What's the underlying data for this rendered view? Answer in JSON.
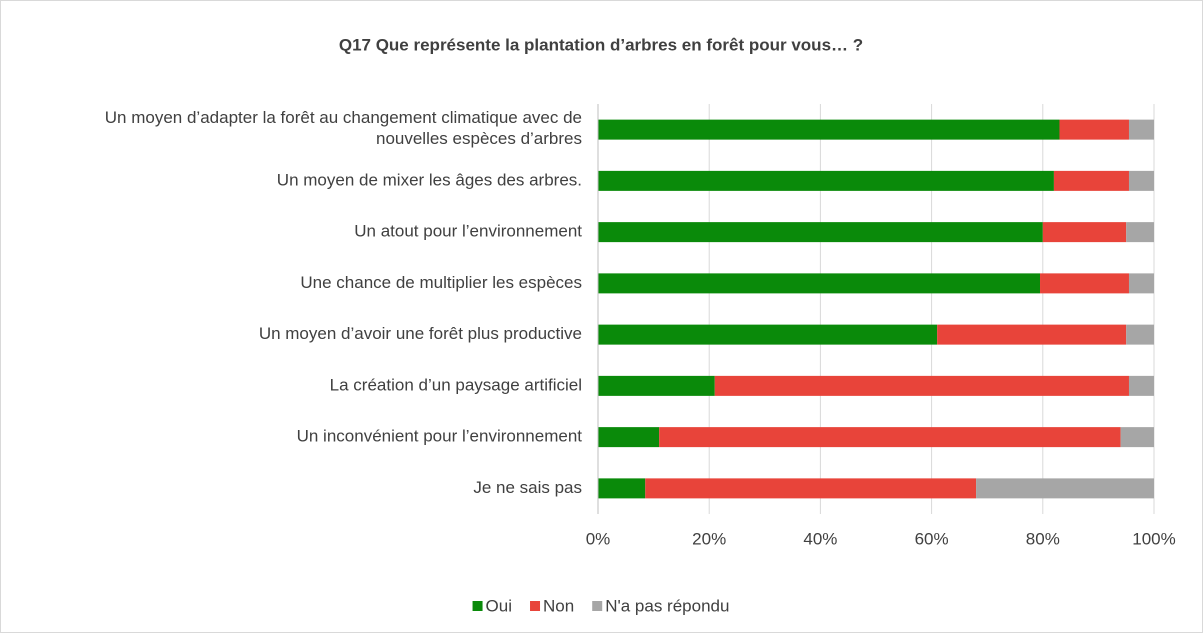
{
  "chart_data": {
    "type": "stacked-bar-horizontal",
    "title": "Q17  Que représente la plantation d’arbres en forêt pour vous… ?",
    "categories": [
      "Un moyen d’adapter la forêt au changement climatique avec de nouvelles espèces d’arbres",
      "Un moyen de mixer les âges des arbres.",
      "Un atout pour l’environnement",
      "Une chance de multiplier les espèces",
      "Un moyen d’avoir une forêt plus productive",
      "La création d’un paysage artificiel",
      "Un inconvénient pour l’environnement",
      "Je ne sais pas"
    ],
    "series": [
      {
        "name": "Oui",
        "color": "#0a8a0a",
        "values": [
          83,
          82,
          80,
          79.5,
          61,
          21,
          11,
          8.5
        ]
      },
      {
        "name": "Non",
        "color": "#e8443a",
        "values": [
          12.5,
          13.5,
          15,
          16,
          34,
          74.5,
          83,
          59.5
        ]
      },
      {
        "name": "N'a pas répondu",
        "color": "#a6a6a6",
        "values": [
          4.5,
          4.5,
          5,
          4.5,
          5,
          4.5,
          6,
          32
        ]
      }
    ],
    "xlim": [
      0,
      100
    ],
    "xticks": [
      {
        "value": 0,
        "label": "0%"
      },
      {
        "value": 20,
        "label": "20%"
      },
      {
        "value": 40,
        "label": "40%"
      },
      {
        "value": 60,
        "label": "60%"
      },
      {
        "value": 80,
        "label": "80%"
      },
      {
        "value": 100,
        "label": "100%"
      }
    ],
    "grid": true,
    "legend": "bottom"
  }
}
